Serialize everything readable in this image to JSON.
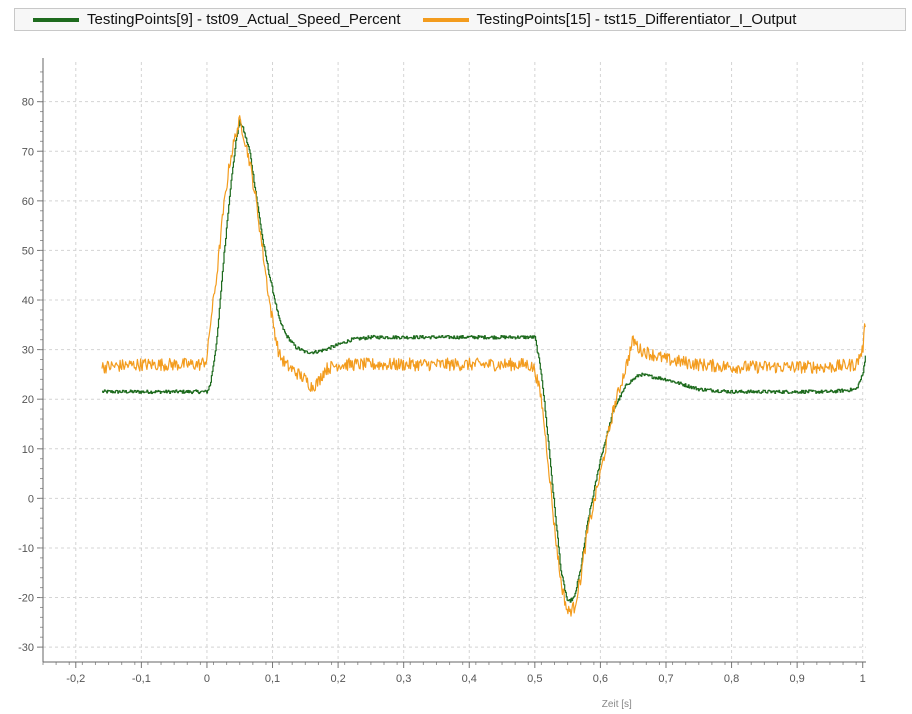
{
  "chart_data": {
    "type": "line",
    "title": "",
    "xlabel": "Zeit [s]",
    "ylabel": "",
    "xlim": [
      -0.25,
      1.005
    ],
    "ylim": [
      -33,
      88
    ],
    "grid": true,
    "legend_position": "top",
    "x_ticks": [
      {
        "v": -0.2,
        "label": "-0,2"
      },
      {
        "v": -0.1,
        "label": "-0,1"
      },
      {
        "v": 0,
        "label": "0"
      },
      {
        "v": 0.1,
        "label": "0,1"
      },
      {
        "v": 0.2,
        "label": "0,2"
      },
      {
        "v": 0.3,
        "label": "0,3"
      },
      {
        "v": 0.4,
        "label": "0,4"
      },
      {
        "v": 0.5,
        "label": "0,5"
      },
      {
        "v": 0.6,
        "label": "0,6"
      },
      {
        "v": 0.7,
        "label": "0,7"
      },
      {
        "v": 0.8,
        "label": "0,8"
      },
      {
        "v": 0.9,
        "label": "0,9"
      },
      {
        "v": 1.0,
        "label": "1"
      }
    ],
    "y_ticks": [
      {
        "v": 80,
        "label": "80"
      },
      {
        "v": 70,
        "label": "70"
      },
      {
        "v": 60,
        "label": "60"
      },
      {
        "v": 50,
        "label": "50"
      },
      {
        "v": 40,
        "label": "40"
      },
      {
        "v": 30,
        "label": "30"
      },
      {
        "v": 20,
        "label": "20"
      },
      {
        "v": 10,
        "label": "10"
      },
      {
        "v": 0,
        "label": "0"
      },
      {
        "v": -10,
        "label": "-10"
      },
      {
        "v": -20,
        "label": "-20"
      },
      {
        "v": -30,
        "label": "-30"
      }
    ],
    "series": [
      {
        "name": "TestingPoints[9] - tst09_Actual_Speed_Percent",
        "color": "#1e6b1e",
        "x": [
          -0.16,
          -0.1,
          -0.05,
          0.0,
          0.005,
          0.015,
          0.025,
          0.035,
          0.045,
          0.05,
          0.055,
          0.065,
          0.075,
          0.085,
          0.095,
          0.1,
          0.11,
          0.12,
          0.135,
          0.15,
          0.165,
          0.18,
          0.2,
          0.22,
          0.25,
          0.3,
          0.35,
          0.4,
          0.45,
          0.5,
          0.51,
          0.52,
          0.53,
          0.54,
          0.55,
          0.56,
          0.57,
          0.58,
          0.6,
          0.62,
          0.64,
          0.66,
          0.68,
          0.7,
          0.75,
          0.8,
          0.85,
          0.9,
          0.95,
          0.99,
          1.0,
          1.005
        ],
        "y": [
          21.5,
          21.5,
          21.5,
          21.5,
          23,
          32,
          48,
          62,
          73,
          76,
          74.5,
          70,
          61,
          52,
          45,
          42,
          36,
          33,
          30.5,
          29.5,
          29.5,
          30,
          31,
          32,
          32.5,
          32.5,
          32.5,
          32.5,
          32.5,
          32.5,
          25,
          12,
          -2,
          -15,
          -21,
          -20,
          -14,
          -5,
          8,
          18,
          23,
          25,
          24.5,
          24,
          22,
          21.5,
          21.5,
          21.5,
          21.5,
          22,
          25,
          30
        ]
      },
      {
        "name": "TestingPoints[15] - tst15_Differentiator_I_Output",
        "color": "#f39c1e",
        "x": [
          -0.16,
          -0.1,
          -0.05,
          -0.01,
          0.0,
          0.005,
          0.015,
          0.025,
          0.035,
          0.045,
          0.05,
          0.055,
          0.065,
          0.075,
          0.085,
          0.095,
          0.1,
          0.11,
          0.12,
          0.135,
          0.15,
          0.16,
          0.17,
          0.18,
          0.2,
          0.25,
          0.3,
          0.35,
          0.4,
          0.45,
          0.49,
          0.5,
          0.51,
          0.52,
          0.53,
          0.54,
          0.55,
          0.56,
          0.57,
          0.58,
          0.6,
          0.62,
          0.64,
          0.65,
          0.66,
          0.68,
          0.7,
          0.75,
          0.8,
          0.85,
          0.9,
          0.95,
          0.99,
          1.0,
          1.005
        ],
        "y": [
          26.5,
          27,
          27,
          27,
          28,
          35,
          45,
          58,
          68,
          74,
          76,
          74,
          68,
          60,
          50,
          40,
          36,
          29,
          27,
          25.5,
          24,
          22.5,
          23.5,
          26,
          27,
          27,
          27,
          27,
          27,
          27,
          27,
          26,
          20,
          8,
          -6,
          -17,
          -23,
          -22,
          -16,
          -7,
          5,
          18,
          27,
          32,
          30,
          29,
          28,
          27,
          26.5,
          26.5,
          26.5,
          26.5,
          27,
          30,
          37
        ]
      }
    ]
  }
}
